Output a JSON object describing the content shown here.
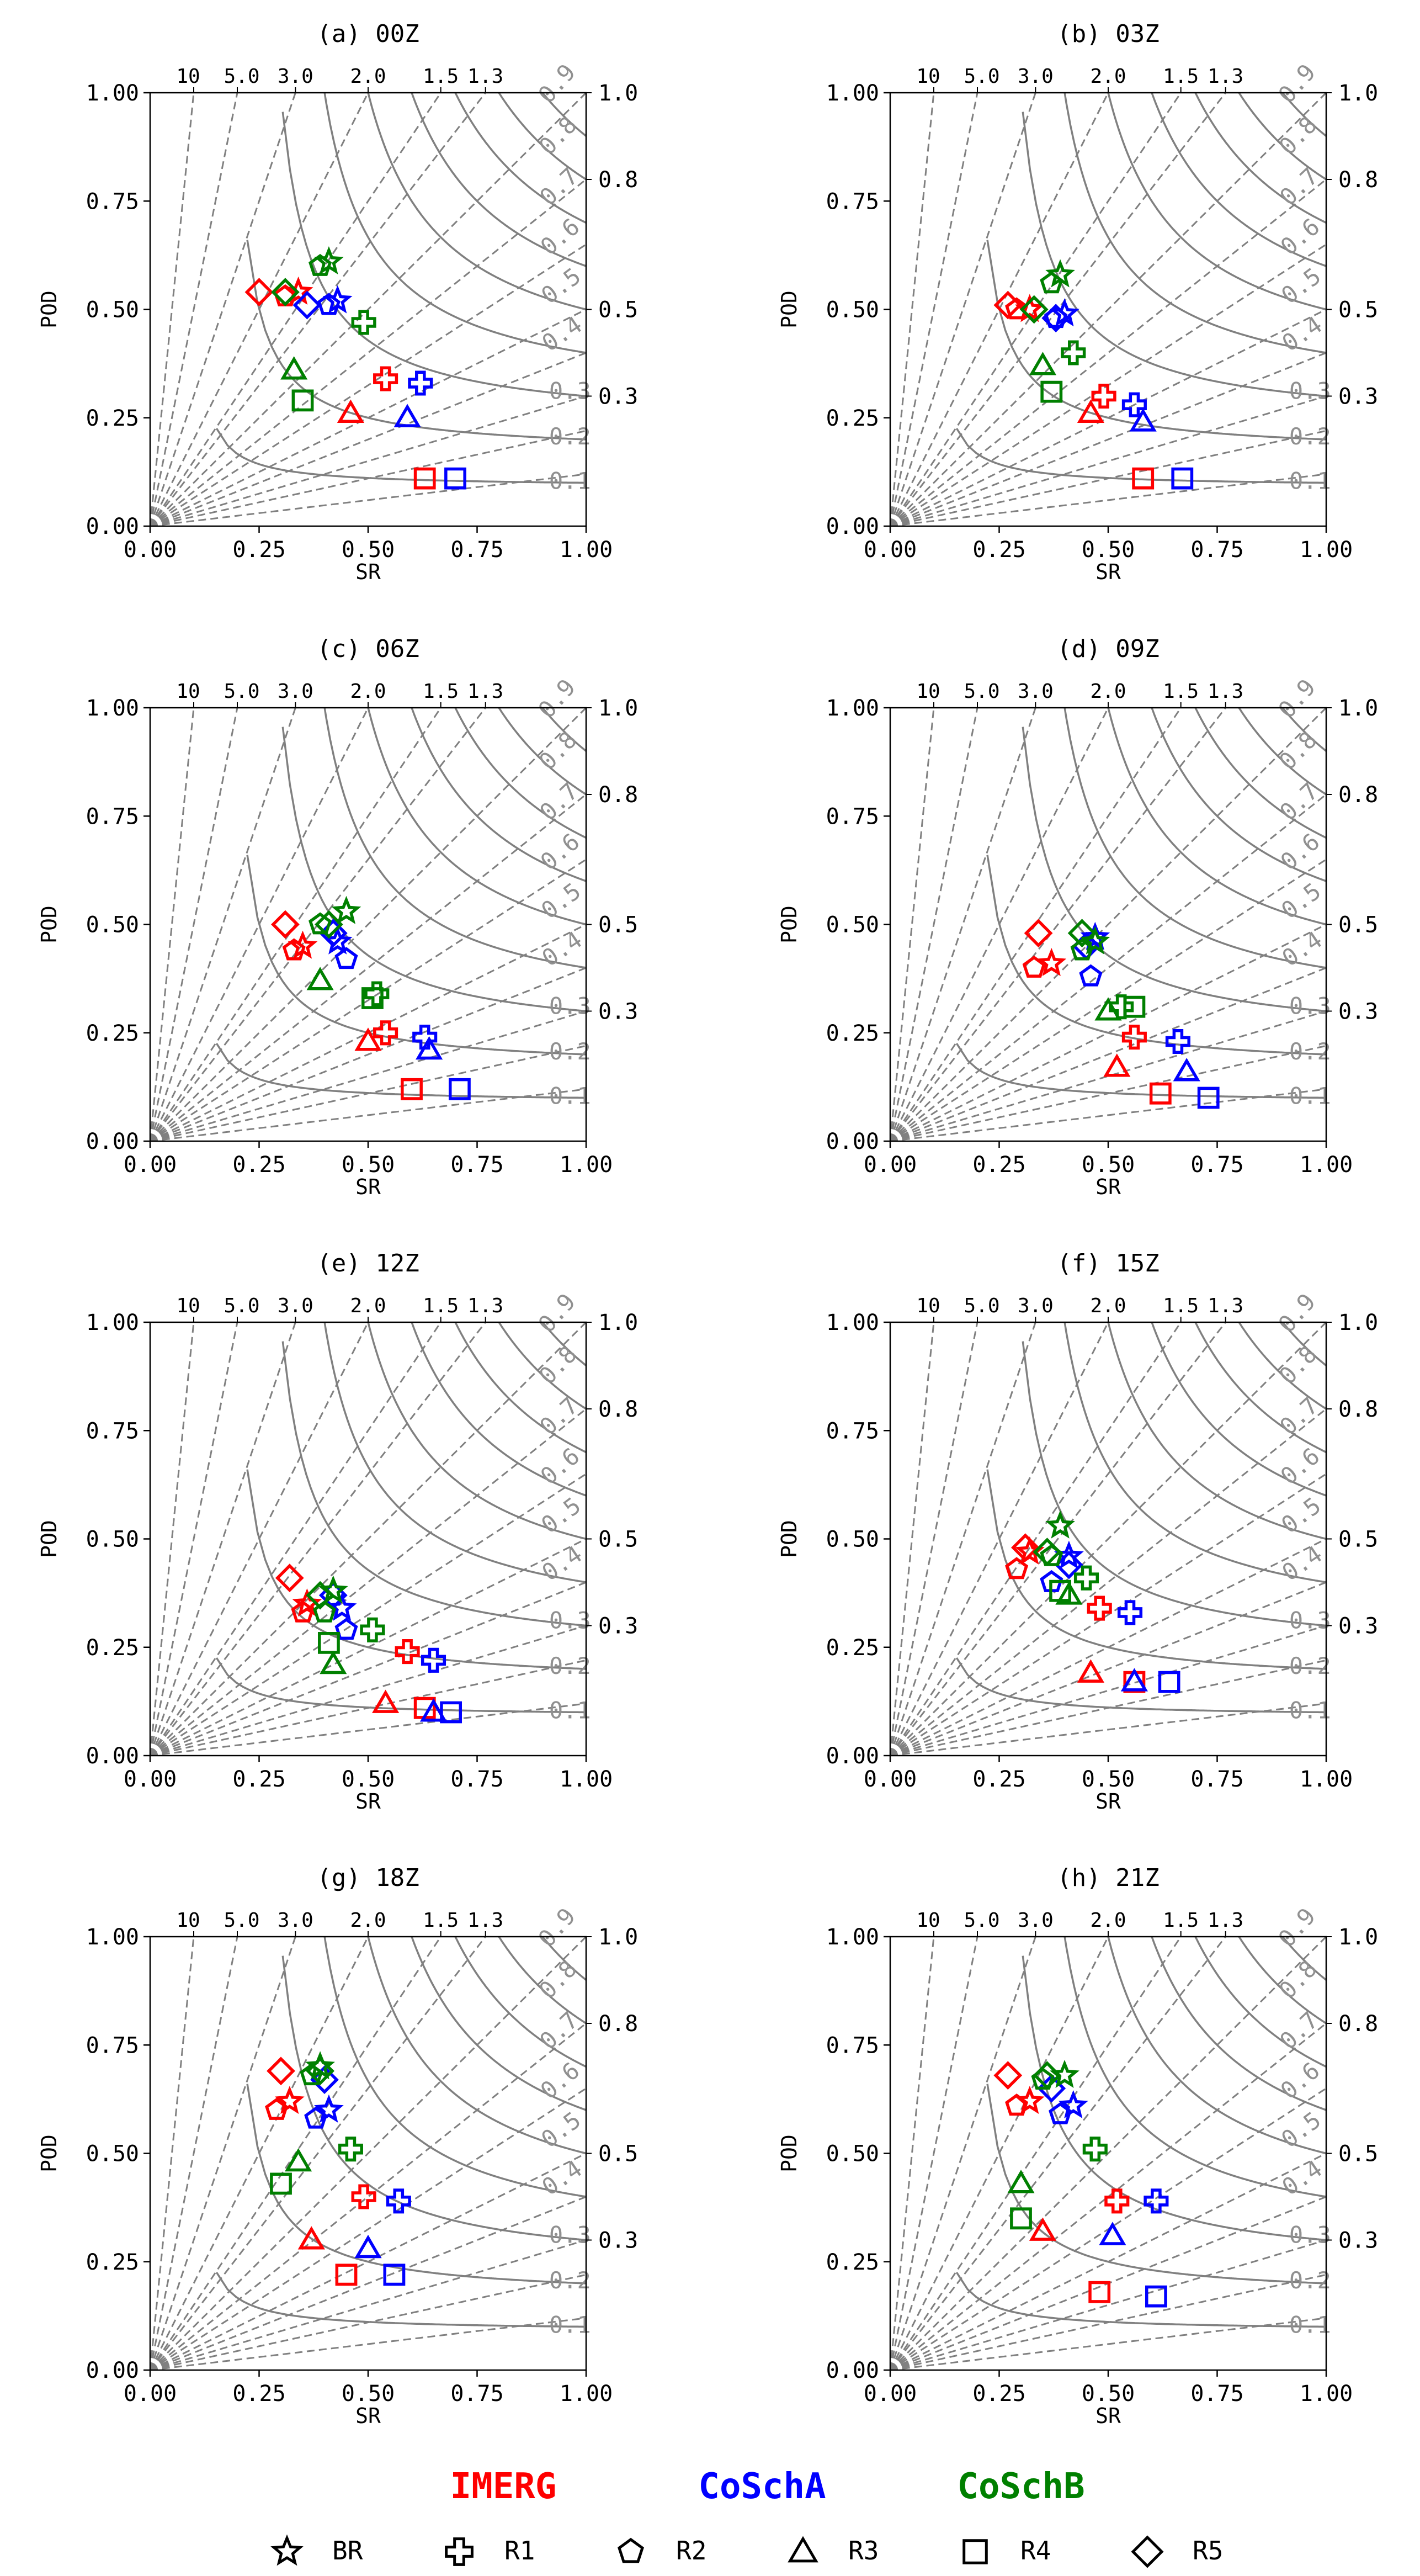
{
  "chart_data": {
    "type": "scatter",
    "xlabel": "SR",
    "ylabel": "POD",
    "xlim": [
      0,
      1
    ],
    "ylim": [
      0,
      1
    ],
    "xticks": [
      "0.00",
      "0.25",
      "0.50",
      "0.75",
      "1.00"
    ],
    "yticks": [
      "0.00",
      "0.25",
      "0.50",
      "0.75",
      "1.00"
    ],
    "bias_values": [
      10,
      5.0,
      3.0,
      2.0,
      1.5,
      1.3
    ],
    "bias_labels": [
      "10",
      "5.0",
      "3.0",
      "2.0",
      "1.5",
      "1.3"
    ],
    "csi_values": [
      0.1,
      0.2,
      0.3,
      0.4,
      0.5,
      0.6,
      0.7,
      0.8,
      0.9
    ],
    "csi_labels": [
      "0.1",
      "0.2",
      "0.3",
      "0.4",
      "0.5",
      "0.6",
      "0.7",
      "0.8",
      "0.9"
    ],
    "right_labels": [
      {
        "y": 1.0,
        "text": "1.0"
      },
      {
        "y": 0.8,
        "text": "0.8"
      },
      {
        "y": 0.5,
        "text": "0.5"
      },
      {
        "y": 0.3,
        "text": "0.3"
      }
    ],
    "datasets": [
      {
        "name": "IMERG",
        "color": "#ff0000"
      },
      {
        "name": "CoSchA",
        "color": "#0000ff"
      },
      {
        "name": "CoSchB",
        "color": "#008000"
      }
    ],
    "markers": [
      {
        "name": "BR",
        "shape": "star"
      },
      {
        "name": "R1",
        "shape": "plus"
      },
      {
        "name": "R2",
        "shape": "pentagon"
      },
      {
        "name": "R3",
        "shape": "triangle"
      },
      {
        "name": "R4",
        "shape": "square"
      },
      {
        "name": "R5",
        "shape": "diamond"
      }
    ],
    "panels": [
      {
        "title": "(a) 00Z",
        "points": {
          "IMERG": {
            "BR": [
              0.34,
              0.54
            ],
            "R1": [
              0.54,
              0.34
            ],
            "R2": [
              0.31,
              0.53
            ],
            "R3": [
              0.46,
              0.26
            ],
            "R4": [
              0.63,
              0.11
            ],
            "R5": [
              0.25,
              0.54
            ]
          },
          "CoSchA": {
            "BR": [
              0.43,
              0.52
            ],
            "R1": [
              0.62,
              0.33
            ],
            "R2": [
              0.41,
              0.51
            ],
            "R3": [
              0.59,
              0.25
            ],
            "R4": [
              0.7,
              0.11
            ],
            "R5": [
              0.36,
              0.51
            ]
          },
          "CoSchB": {
            "BR": [
              0.41,
              0.61
            ],
            "R1": [
              0.49,
              0.47
            ],
            "R2": [
              0.39,
              0.6
            ],
            "R3": [
              0.33,
              0.36
            ],
            "R4": [
              0.35,
              0.29
            ],
            "R5": [
              0.31,
              0.54
            ]
          }
        }
      },
      {
        "title": "(b) 03Z",
        "points": {
          "IMERG": {
            "BR": [
              0.32,
              0.5
            ],
            "R1": [
              0.49,
              0.3
            ],
            "R2": [
              0.29,
              0.5
            ],
            "R3": [
              0.46,
              0.26
            ],
            "R4": [
              0.58,
              0.11
            ],
            "R5": [
              0.27,
              0.51
            ]
          },
          "CoSchA": {
            "BR": [
              0.4,
              0.49
            ],
            "R1": [
              0.56,
              0.28
            ],
            "R2": [
              0.38,
              0.48
            ],
            "R3": [
              0.58,
              0.24
            ],
            "R4": [
              0.67,
              0.11
            ],
            "R5": [
              0.38,
              0.48
            ]
          },
          "CoSchB": {
            "BR": [
              0.39,
              0.58
            ],
            "R1": [
              0.42,
              0.4
            ],
            "R2": [
              0.37,
              0.56
            ],
            "R3": [
              0.35,
              0.37
            ],
            "R4": [
              0.37,
              0.31
            ],
            "R5": [
              0.33,
              0.5
            ]
          }
        }
      },
      {
        "title": "(c) 06Z",
        "points": {
          "IMERG": {
            "BR": [
              0.35,
              0.45
            ],
            "R1": [
              0.54,
              0.25
            ],
            "R2": [
              0.33,
              0.44
            ],
            "R3": [
              0.5,
              0.23
            ],
            "R4": [
              0.6,
              0.12
            ],
            "R5": [
              0.31,
              0.5
            ]
          },
          "CoSchA": {
            "BR": [
              0.43,
              0.46
            ],
            "R1": [
              0.63,
              0.24
            ],
            "R2": [
              0.45,
              0.42
            ],
            "R3": [
              0.64,
              0.21
            ],
            "R4": [
              0.71,
              0.12
            ],
            "R5": [
              0.42,
              0.48
            ]
          },
          "CoSchB": {
            "BR": [
              0.45,
              0.53
            ],
            "R1": [
              0.52,
              0.34
            ],
            "R2": [
              0.39,
              0.5
            ],
            "R3": [
              0.39,
              0.37
            ],
            "R4": [
              0.51,
              0.33
            ],
            "R5": [
              0.41,
              0.5
            ]
          }
        }
      },
      {
        "title": "(d) 09Z",
        "points": {
          "IMERG": {
            "BR": [
              0.37,
              0.41
            ],
            "R1": [
              0.56,
              0.24
            ],
            "R2": [
              0.33,
              0.4
            ],
            "R3": [
              0.52,
              0.17
            ],
            "R4": [
              0.62,
              0.11
            ],
            "R5": [
              0.34,
              0.48
            ]
          },
          "CoSchA": {
            "BR": [
              0.47,
              0.47
            ],
            "R1": [
              0.66,
              0.23
            ],
            "R2": [
              0.46,
              0.38
            ],
            "R3": [
              0.68,
              0.16
            ],
            "R4": [
              0.73,
              0.1
            ],
            "R5": [
              0.45,
              0.45
            ]
          },
          "CoSchB": {
            "BR": [
              0.47,
              0.46
            ],
            "R1": [
              0.53,
              0.31
            ],
            "R2": [
              0.44,
              0.44
            ],
            "R3": [
              0.5,
              0.3
            ],
            "R4": [
              0.56,
              0.31
            ],
            "R5": [
              0.44,
              0.48
            ]
          }
        }
      },
      {
        "title": "(e) 12Z",
        "points": {
          "IMERG": {
            "BR": [
              0.36,
              0.35
            ],
            "R1": [
              0.59,
              0.24
            ],
            "R2": [
              0.35,
              0.33
            ],
            "R3": [
              0.54,
              0.12
            ],
            "R4": [
              0.63,
              0.11
            ],
            "R5": [
              0.32,
              0.41
            ]
          },
          "CoSchA": {
            "BR": [
              0.44,
              0.34
            ],
            "R1": [
              0.65,
              0.22
            ],
            "R2": [
              0.45,
              0.29
            ],
            "R3": [
              0.65,
              0.1
            ],
            "R4": [
              0.69,
              0.1
            ],
            "R5": [
              0.42,
              0.37
            ]
          },
          "CoSchB": {
            "BR": [
              0.42,
              0.38
            ],
            "R1": [
              0.51,
              0.29
            ],
            "R2": [
              0.4,
              0.33
            ],
            "R3": [
              0.42,
              0.21
            ],
            "R4": [
              0.41,
              0.26
            ],
            "R5": [
              0.39,
              0.37
            ]
          }
        }
      },
      {
        "title": "(f) 15Z",
        "points": {
          "IMERG": {
            "BR": [
              0.32,
              0.47
            ],
            "R1": [
              0.48,
              0.34
            ],
            "R2": [
              0.29,
              0.43
            ],
            "R3": [
              0.46,
              0.19
            ],
            "R4": [
              0.56,
              0.17
            ],
            "R5": [
              0.31,
              0.48
            ]
          },
          "CoSchA": {
            "BR": [
              0.41,
              0.46
            ],
            "R1": [
              0.55,
              0.33
            ],
            "R2": [
              0.37,
              0.4
            ],
            "R3": [
              0.56,
              0.17
            ],
            "R4": [
              0.64,
              0.17
            ],
            "R5": [
              0.41,
              0.44
            ]
          },
          "CoSchB": {
            "BR": [
              0.39,
              0.53
            ],
            "R1": [
              0.45,
              0.41
            ],
            "R2": [
              0.37,
              0.46
            ],
            "R3": [
              0.41,
              0.37
            ],
            "R4": [
              0.39,
              0.38
            ],
            "R5": [
              0.36,
              0.47
            ]
          }
        }
      },
      {
        "title": "(g) 18Z",
        "points": {
          "IMERG": {
            "BR": [
              0.32,
              0.62
            ],
            "R1": [
              0.49,
              0.4
            ],
            "R2": [
              0.29,
              0.6
            ],
            "R3": [
              0.37,
              0.3
            ],
            "R4": [
              0.45,
              0.22
            ],
            "R5": [
              0.3,
              0.69
            ]
          },
          "CoSchA": {
            "BR": [
              0.41,
              0.6
            ],
            "R1": [
              0.57,
              0.39
            ],
            "R2": [
              0.38,
              0.58
            ],
            "R3": [
              0.5,
              0.28
            ],
            "R4": [
              0.56,
              0.22
            ],
            "R5": [
              0.4,
              0.67
            ]
          },
          "CoSchB": {
            "BR": [
              0.39,
              0.7
            ],
            "R1": [
              0.46,
              0.51
            ],
            "R2": [
              0.37,
              0.68
            ],
            "R3": [
              0.34,
              0.48
            ],
            "R4": [
              0.3,
              0.43
            ],
            "R5": [
              0.39,
              0.69
            ]
          }
        }
      },
      {
        "title": "(h) 21Z",
        "points": {
          "IMERG": {
            "BR": [
              0.32,
              0.62
            ],
            "R1": [
              0.52,
              0.39
            ],
            "R2": [
              0.29,
              0.61
            ],
            "R3": [
              0.35,
              0.32
            ],
            "R4": [
              0.48,
              0.18
            ],
            "R5": [
              0.27,
              0.68
            ]
          },
          "CoSchA": {
            "BR": [
              0.42,
              0.61
            ],
            "R1": [
              0.61,
              0.39
            ],
            "R2": [
              0.39,
              0.59
            ],
            "R3": [
              0.51,
              0.31
            ],
            "R4": [
              0.61,
              0.17
            ],
            "R5": [
              0.37,
              0.65
            ]
          },
          "CoSchB": {
            "BR": [
              0.4,
              0.68
            ],
            "R1": [
              0.47,
              0.51
            ],
            "R2": [
              0.35,
              0.67
            ],
            "R3": [
              0.3,
              0.43
            ],
            "R4": [
              0.3,
              0.35
            ],
            "R5": [
              0.36,
              0.68
            ]
          }
        }
      }
    ]
  }
}
